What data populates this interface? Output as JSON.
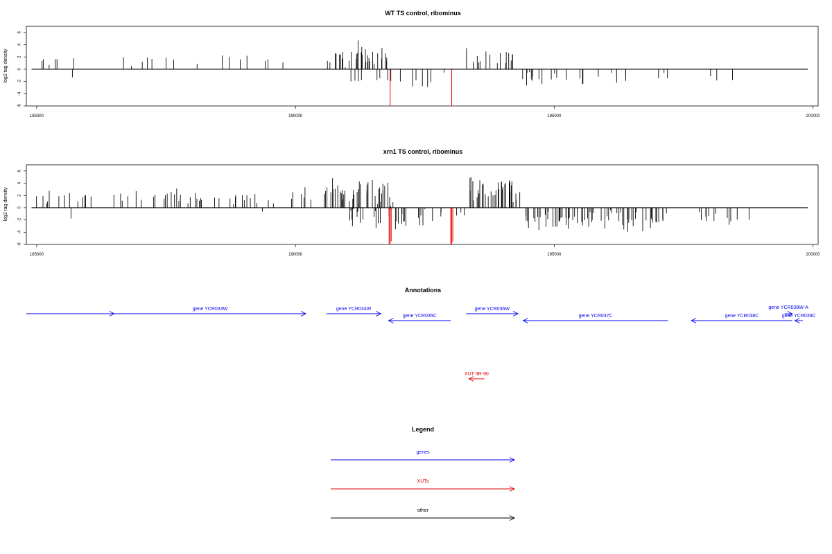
{
  "chart_data": [
    {
      "type": "bar",
      "title": "WT TS control, ribominus",
      "ylabel": "log2 tag density",
      "xlim": [
        184800,
        200100
      ],
      "ylim": [
        -6,
        7
      ],
      "yticks": [
        6,
        4,
        2,
        0,
        -2,
        -4,
        -6
      ],
      "ytick_labels": [
        "6",
        "4",
        "2",
        "0",
        "-2",
        "-4",
        "-6"
      ],
      "xticks": [
        185000,
        190000,
        195000,
        200000
      ],
      "xtick_labels": [
        "185000",
        "190000",
        "195000",
        "200000"
      ],
      "baseline_range": [
        184900,
        199900
      ],
      "series": [
        {
          "strand": "plus",
          "color": "#000000",
          "segments": [
            {
              "start": 185000,
              "end": 186000,
              "density": 0.55,
              "mean": 1.6,
              "spread": 0.8,
              "seed": 11
            },
            {
              "start": 186300,
              "end": 188500,
              "density": 0.35,
              "mean": 1.6,
              "spread": 0.8,
              "seed": 12
            },
            {
              "start": 188500,
              "end": 190300,
              "density": 0.38,
              "mean": 1.8,
              "spread": 0.9,
              "seed": 13
            },
            {
              "start": 190600,
              "end": 191850,
              "density": 2.8,
              "mean": 2.5,
              "spread": 1.5,
              "seed": 14
            },
            {
              "start": 193300,
              "end": 194300,
              "density": 1.6,
              "mean": 2.0,
              "spread": 1.2,
              "seed": 15
            }
          ]
        },
        {
          "strand": "minus",
          "color": "#000000",
          "segments": [
            {
              "start": 185680,
              "end": 185720,
              "density": 1.0,
              "mean": 1.5,
              "spread": 0.2,
              "seed": 21
            },
            {
              "start": 191050,
              "end": 193200,
              "density": 0.7,
              "mean": 1.6,
              "spread": 1.0,
              "seed": 22
            },
            {
              "start": 194350,
              "end": 197200,
              "density": 0.85,
              "mean": 1.5,
              "spread": 1.0,
              "seed": 23
            },
            {
              "start": 197800,
              "end": 198700,
              "density": 0.35,
              "mean": 1.4,
              "spread": 0.8,
              "seed": 24
            }
          ]
        },
        {
          "strand": "minus",
          "color": "#ee0000",
          "points": [
            {
              "x": 191830,
              "y": -6
            },
            {
              "x": 193020,
              "y": -6
            }
          ]
        }
      ]
    },
    {
      "type": "bar",
      "title": "xrn1 TS control, ribominus",
      "ylabel": "log2 tag density",
      "xlim": [
        184800,
        200100
      ],
      "ylim": [
        -6,
        7
      ],
      "yticks": [
        6,
        4,
        2,
        0,
        -2,
        -4,
        -6
      ],
      "ytick_labels": [
        "6",
        "4",
        "2",
        "0",
        "-2",
        "-4",
        "-6"
      ],
      "xticks": [
        185000,
        190000,
        195000,
        200000
      ],
      "xtick_labels": [
        "185000",
        "190000",
        "195000",
        "200000"
      ],
      "baseline_range": [
        184900,
        199900
      ],
      "series": [
        {
          "strand": "plus",
          "color": "#000000",
          "segments": [
            {
              "start": 184950,
              "end": 186000,
              "density": 1.1,
              "mean": 1.8,
              "spread": 1.0,
              "seed": 31
            },
            {
              "start": 186000,
              "end": 188500,
              "density": 1.0,
              "mean": 1.9,
              "spread": 1.1,
              "seed": 32
            },
            {
              "start": 188500,
              "end": 190400,
              "density": 1.0,
              "mean": 1.9,
              "spread": 1.0,
              "seed": 33
            },
            {
              "start": 190550,
              "end": 191900,
              "density": 3.0,
              "mean": 2.6,
              "spread": 1.6,
              "seed": 34
            },
            {
              "start": 193300,
              "end": 194350,
              "density": 3.4,
              "mean": 2.8,
              "spread": 1.7,
              "seed": 35
            }
          ]
        },
        {
          "strand": "minus",
          "color": "#000000",
          "segments": [
            {
              "start": 185650,
              "end": 185700,
              "density": 1.0,
              "mean": 1.6,
              "spread": 0.2,
              "seed": 41
            },
            {
              "start": 189350,
              "end": 189400,
              "density": 1.0,
              "mean": 0.8,
              "spread": 0.2,
              "seed": 42
            },
            {
              "start": 190950,
              "end": 193300,
              "density": 1.5,
              "mean": 1.8,
              "spread": 1.1,
              "seed": 43
            },
            {
              "start": 194350,
              "end": 197300,
              "density": 2.4,
              "mean": 2.0,
              "spread": 1.2,
              "seed": 44
            },
            {
              "start": 197600,
              "end": 198900,
              "density": 0.9,
              "mean": 1.7,
              "spread": 0.9,
              "seed": 45
            }
          ]
        },
        {
          "strand": "minus",
          "color": "#ee0000",
          "points": [
            {
              "x": 191810,
              "y": -5.9
            },
            {
              "x": 191830,
              "y": -6
            },
            {
              "x": 191850,
              "y": -5.5
            },
            {
              "x": 193000,
              "y": -5.9
            },
            {
              "x": 193020,
              "y": -6
            },
            {
              "x": 193040,
              "y": -5.6
            }
          ]
        }
      ]
    }
  ],
  "annotations": {
    "title": "Annotations",
    "color_gene": "#0000ee",
    "color_xut": "#dd0000",
    "features": [
      {
        "label": "",
        "start": 184700,
        "end": 186500,
        "strand": "+",
        "row": 0,
        "type": "gene"
      },
      {
        "label": "gene YCR033W",
        "start": 186500,
        "end": 190200,
        "strand": "+",
        "row": 0,
        "type": "gene"
      },
      {
        "label": "gene YCR034W",
        "start": 190600,
        "end": 191650,
        "strand": "+",
        "row": 0,
        "type": "gene"
      },
      {
        "label": "gene YCR035C",
        "start": 191800,
        "end": 193000,
        "strand": "-",
        "row": 1,
        "type": "gene"
      },
      {
        "label": "gene YCR036W",
        "start": 193300,
        "end": 194300,
        "strand": "+",
        "row": 0,
        "type": "gene"
      },
      {
        "label": "gene YCR037C",
        "start": 194400,
        "end": 197200,
        "strand": "-",
        "row": 1,
        "type": "gene"
      },
      {
        "label": "gene YCR038C",
        "start": 197650,
        "end": 199600,
        "strand": "-",
        "row": 1,
        "type": "gene"
      },
      {
        "label": "gene YCR038W-A",
        "start": 199450,
        "end": 199600,
        "strand": "+",
        "row": 2,
        "type": "gene"
      },
      {
        "label": "gene YCR039C",
        "start": 199650,
        "end": 200350,
        "strand": "-",
        "row": 1,
        "type": "gene"
      },
      {
        "label": "XUT 3R-90",
        "start": 193350,
        "end": 193650,
        "strand": "-",
        "row": 3,
        "type": "xut"
      }
    ]
  },
  "legend": {
    "title": "Legend",
    "items": [
      {
        "label": "genes",
        "color": "#0000ee"
      },
      {
        "label": "XUTs",
        "color": "#dd0000"
      },
      {
        "label": "other",
        "color": "#000000"
      }
    ]
  }
}
